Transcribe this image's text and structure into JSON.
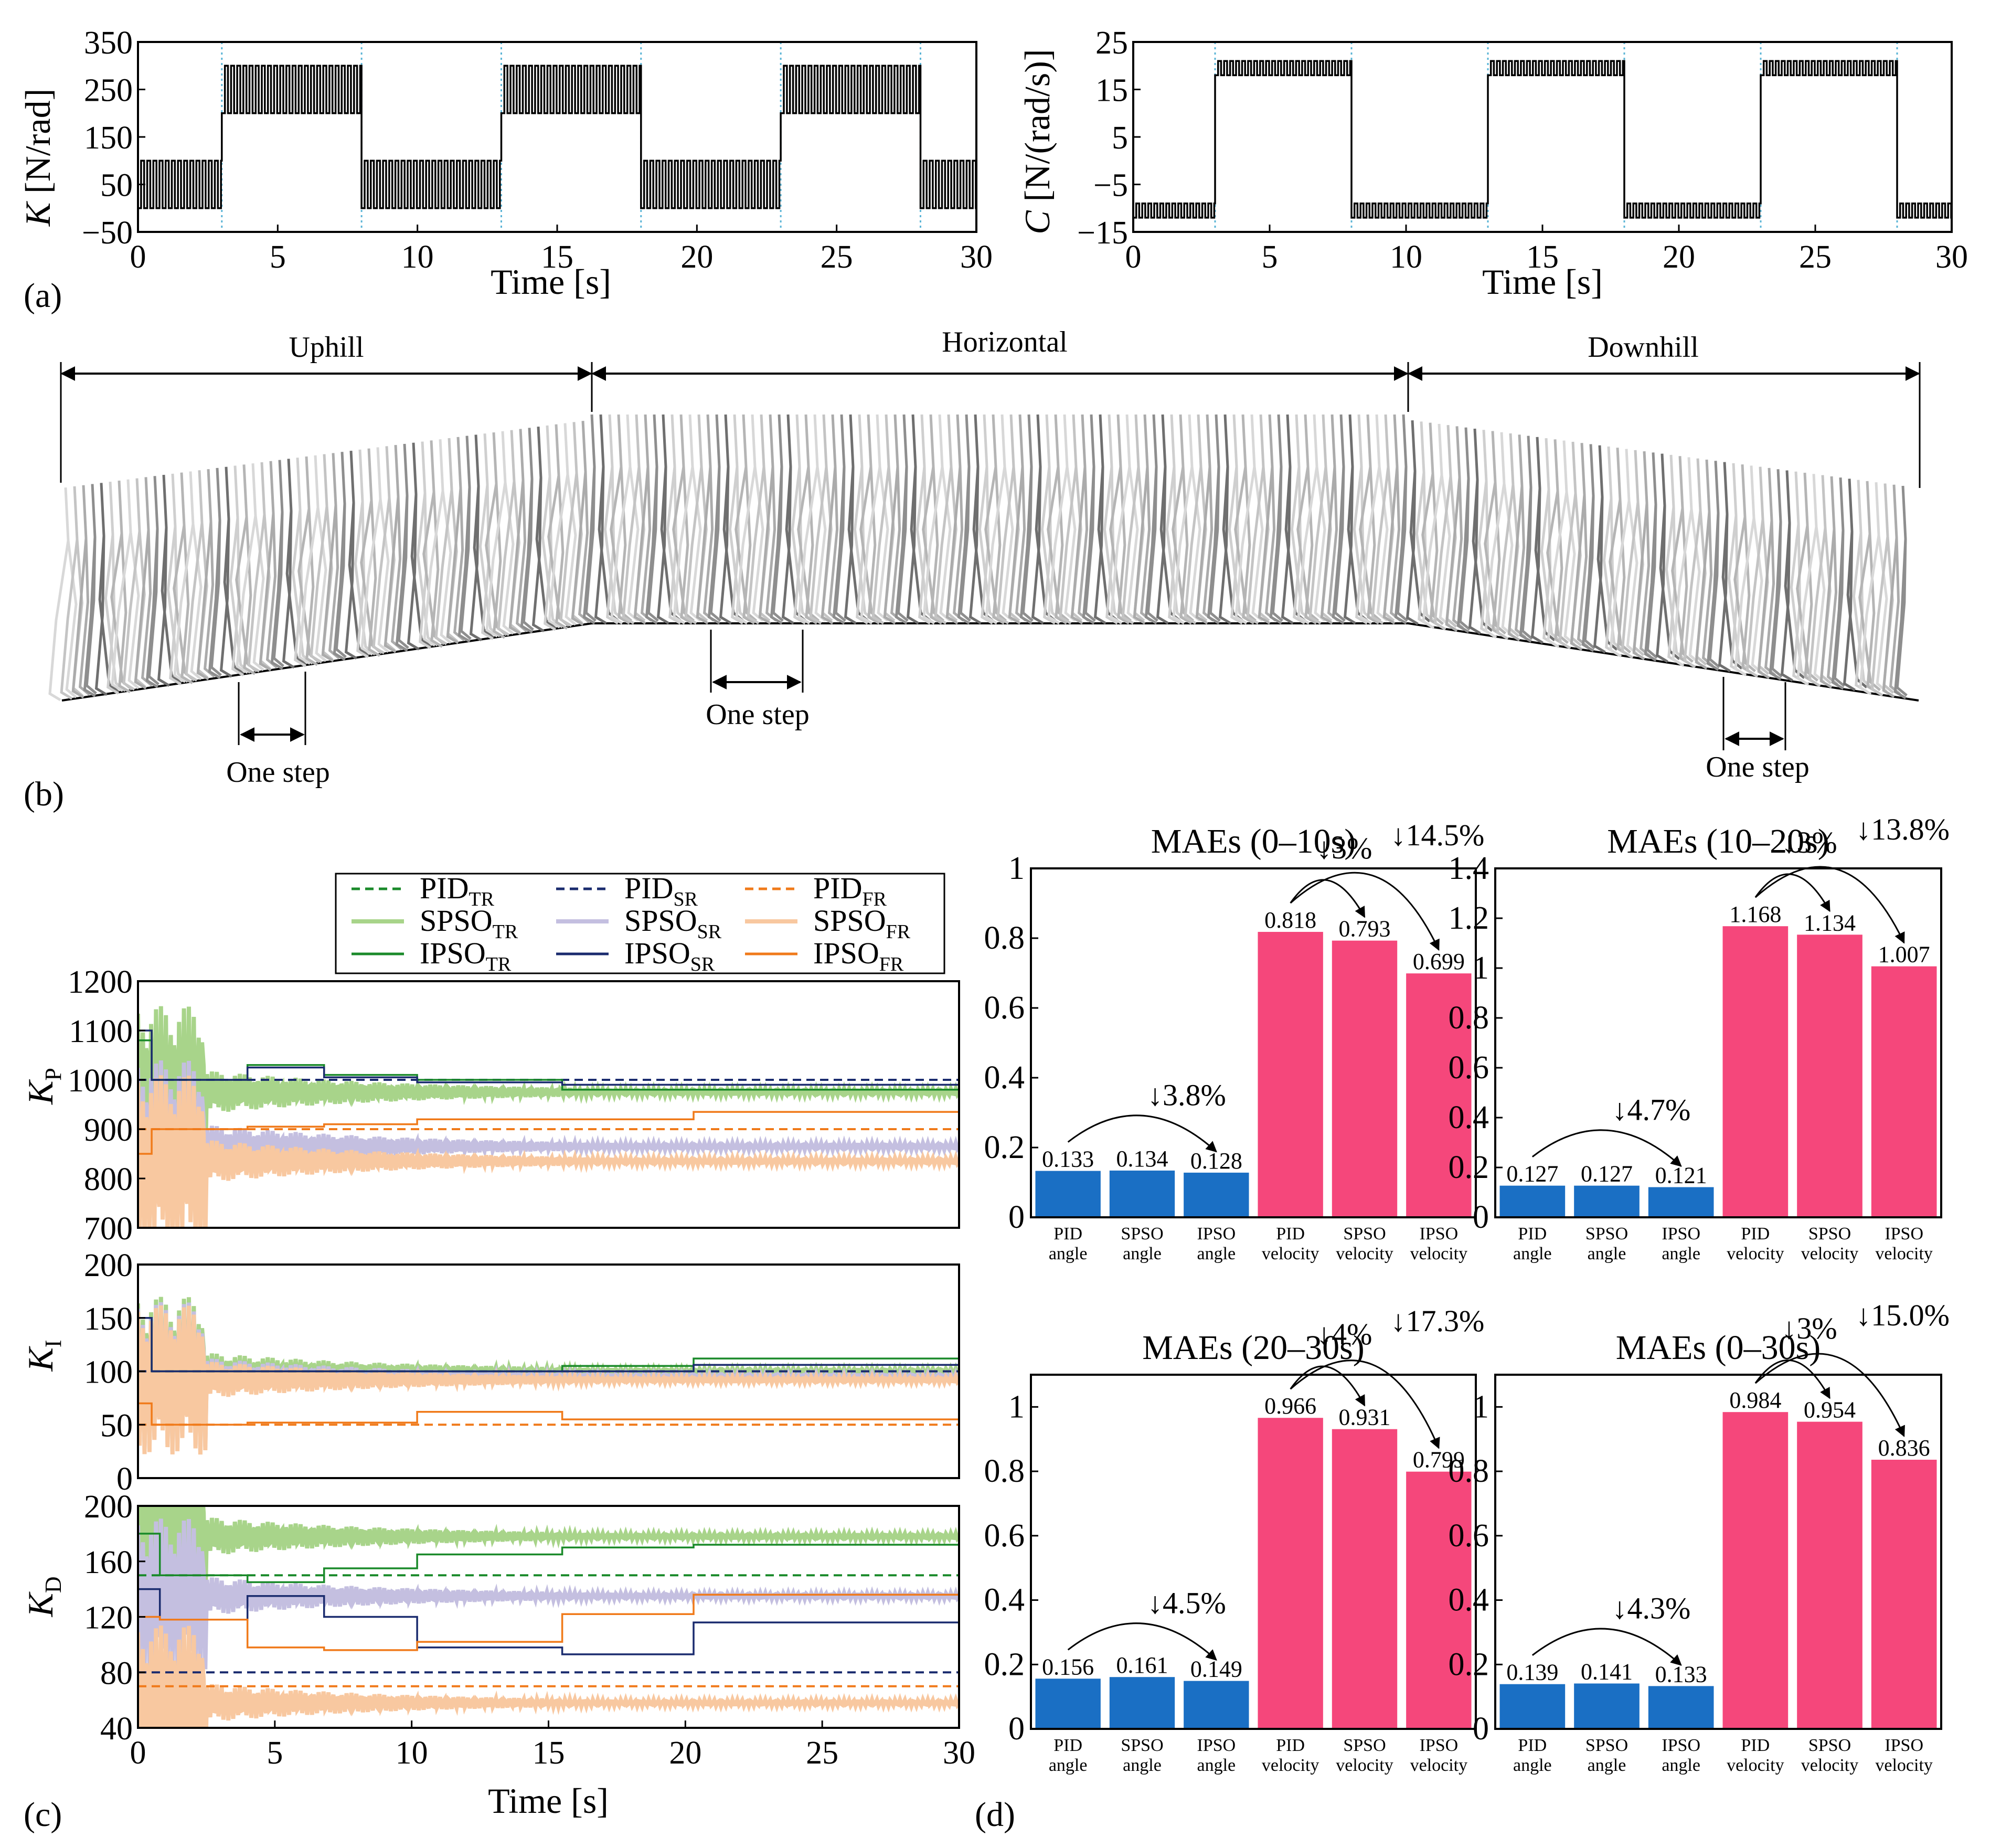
{
  "colors": {
    "blue": "#1a6fc4",
    "pink": "#f5477b",
    "pid_tr": "#1a8a2a",
    "pid_sr": "#1a2b6e",
    "pid_fr": "#f07a1a",
    "spso_tr": "#a8d48a",
    "spso_sr": "#c4bfe0",
    "spso_fr": "#f8c8a0",
    "cyan": "#5ab4d6"
  },
  "panel_labels": {
    "a": "(a)",
    "b": "(b)",
    "c": "(c)",
    "d": "(d)"
  },
  "panel_a": {
    "k_chart": {
      "ylabel_var": "K",
      "ylabel_unit": " [N/rad]",
      "xlabel": "Time [s]",
      "xticks": [
        "0",
        "5",
        "10",
        "15",
        "20",
        "25",
        "30"
      ],
      "yticks": [
        "350",
        "250",
        "150",
        "50",
        "−50"
      ],
      "xlim": [
        0,
        30
      ],
      "ylim": [
        -50,
        350
      ]
    },
    "c_chart": {
      "ylabel_var": "C",
      "ylabel_unit": " [N/(rad/s)]",
      "xlabel": "Time [s]",
      "xticks": [
        "0",
        "5",
        "10",
        "15",
        "20",
        "25",
        "30"
      ],
      "yticks": [
        "25",
        "15",
        "5",
        "−5",
        "−15"
      ],
      "xlim": [
        0,
        30
      ],
      "ylim": [
        -15,
        25
      ]
    }
  },
  "panel_b": {
    "segments": [
      "Uphill",
      "Horizontal",
      "Downhill"
    ],
    "step_label": "One step"
  },
  "panel_c": {
    "legend": [
      {
        "name": "PID",
        "sub": "TR",
        "style": "dashed",
        "color_key": "pid_tr"
      },
      {
        "name": "PID",
        "sub": "SR",
        "style": "dashed",
        "color_key": "pid_sr"
      },
      {
        "name": "PID",
        "sub": "FR",
        "style": "dashed",
        "color_key": "pid_fr"
      },
      {
        "name": "SPSO",
        "sub": "TR",
        "style": "solid",
        "color_key": "spso_tr"
      },
      {
        "name": "SPSO",
        "sub": "SR",
        "style": "solid",
        "color_key": "spso_sr"
      },
      {
        "name": "SPSO",
        "sub": "FR",
        "style": "solid",
        "color_key": "spso_fr"
      },
      {
        "name": "IPSO",
        "sub": "TR",
        "style": "solid",
        "color_key": "pid_tr"
      },
      {
        "name": "IPSO",
        "sub": "SR",
        "style": "solid",
        "color_key": "pid_sr"
      },
      {
        "name": "IPSO",
        "sub": "FR",
        "style": "solid",
        "color_key": "pid_fr"
      }
    ],
    "xlabel": "Time [s]",
    "xticks": [
      "0",
      "5",
      "10",
      "15",
      "20",
      "25",
      "30"
    ],
    "subplots": [
      {
        "var": "K",
        "sub": "P",
        "yticks": [
          "1200",
          "1100",
          "1000",
          "900",
          "800",
          "700"
        ],
        "ylim": [
          700,
          1200
        ]
      },
      {
        "var": "K",
        "sub": "I",
        "yticks": [
          "200",
          "150",
          "100",
          "50",
          "0"
        ],
        "ylim": [
          0,
          200
        ]
      },
      {
        "var": "K",
        "sub": "D",
        "yticks": [
          "200",
          "160",
          "120",
          "80",
          "40"
        ],
        "ylim": [
          40,
          200
        ]
      }
    ],
    "pid_levels": {
      "KP": {
        "TR": 1000,
        "SR": 1000,
        "FR": 900
      },
      "KI": {
        "TR": 100,
        "SR": 100,
        "FR": 50
      },
      "KD": {
        "TR": 150,
        "SR": 80,
        "FR": 70
      }
    }
  },
  "chart_data": [
    {
      "type": "bar",
      "title": "MAEs (0–10s)",
      "categories": [
        "PID\nangle",
        "SPSO\nangle",
        "IPSO\nangle",
        "PID\nvelocity",
        "SPSO\nvelocity",
        "IPSO\nvelocity"
      ],
      "cat_lines": [
        [
          "PID",
          "angle"
        ],
        [
          "SPSO",
          "angle"
        ],
        [
          "IPSO",
          "angle"
        ],
        [
          "PID",
          "velocity"
        ],
        [
          "SPSO",
          "velocity"
        ],
        [
          "IPSO",
          "velocity"
        ]
      ],
      "values": [
        0.133,
        0.134,
        0.128,
        0.818,
        0.793,
        0.699
      ],
      "labels": [
        "0.133",
        "0.134",
        "0.128",
        "0.818",
        "0.793",
        "0.699"
      ],
      "yticks": [
        "0",
        "0.2",
        "0.4",
        "0.6",
        "0.8",
        "1"
      ],
      "ylim": [
        0,
        1
      ],
      "annotations": [
        "↓3.8%",
        "↓3%",
        "↓14.5%"
      ]
    },
    {
      "type": "bar",
      "title": "MAEs (10–20s)",
      "cat_lines": [
        [
          "PID",
          "angle"
        ],
        [
          "SPSO",
          "angle"
        ],
        [
          "IPSO",
          "angle"
        ],
        [
          "PID",
          "velocity"
        ],
        [
          "SPSO",
          "velocity"
        ],
        [
          "IPSO",
          "velocity"
        ]
      ],
      "values": [
        0.127,
        0.127,
        0.121,
        1.168,
        1.134,
        1.007
      ],
      "labels": [
        "0.127",
        "0.127",
        "0.121",
        "1.168",
        "1.134",
        "1.007"
      ],
      "yticks": [
        "0",
        "0.2",
        "0.4",
        "0.6",
        "0.8",
        "1",
        "1.2",
        "1.4"
      ],
      "ylim": [
        0,
        1.4
      ],
      "annotations": [
        "↓4.7%",
        "↓3%",
        "↓13.8%"
      ]
    },
    {
      "type": "bar",
      "title": "MAEs (20–30s)",
      "cat_lines": [
        [
          "PID",
          "angle"
        ],
        [
          "SPSO",
          "angle"
        ],
        [
          "IPSO",
          "angle"
        ],
        [
          "PID",
          "velocity"
        ],
        [
          "SPSO",
          "velocity"
        ],
        [
          "IPSO",
          "velocity"
        ]
      ],
      "values": [
        0.156,
        0.161,
        0.149,
        0.966,
        0.931,
        0.799
      ],
      "labels": [
        "0.156",
        "0.161",
        "0.149",
        "0.966",
        "0.931",
        "0.799"
      ],
      "yticks": [
        "0",
        "0.2",
        "0.4",
        "0.6",
        "0.8",
        "1"
      ],
      "ylim": [
        0,
        1.1
      ],
      "annotations": [
        "↓4.5%",
        "↓4%",
        "↓17.3%"
      ]
    },
    {
      "type": "bar",
      "title": "MAEs (0–30s)",
      "cat_lines": [
        [
          "PID",
          "angle"
        ],
        [
          "SPSO",
          "angle"
        ],
        [
          "IPSO",
          "angle"
        ],
        [
          "PID",
          "velocity"
        ],
        [
          "SPSO",
          "velocity"
        ],
        [
          "IPSO",
          "velocity"
        ]
      ],
      "values": [
        0.139,
        0.141,
        0.133,
        0.984,
        0.954,
        0.836
      ],
      "labels": [
        "0.139",
        "0.141",
        "0.133",
        "0.984",
        "0.954",
        "0.836"
      ],
      "yticks": [
        "0",
        "0.2",
        "0.4",
        "0.6",
        "0.8",
        "1"
      ],
      "ylim": [
        0,
        1.1
      ],
      "annotations": [
        "↓4.3%",
        "↓3%",
        "↓15.0%"
      ]
    }
  ]
}
